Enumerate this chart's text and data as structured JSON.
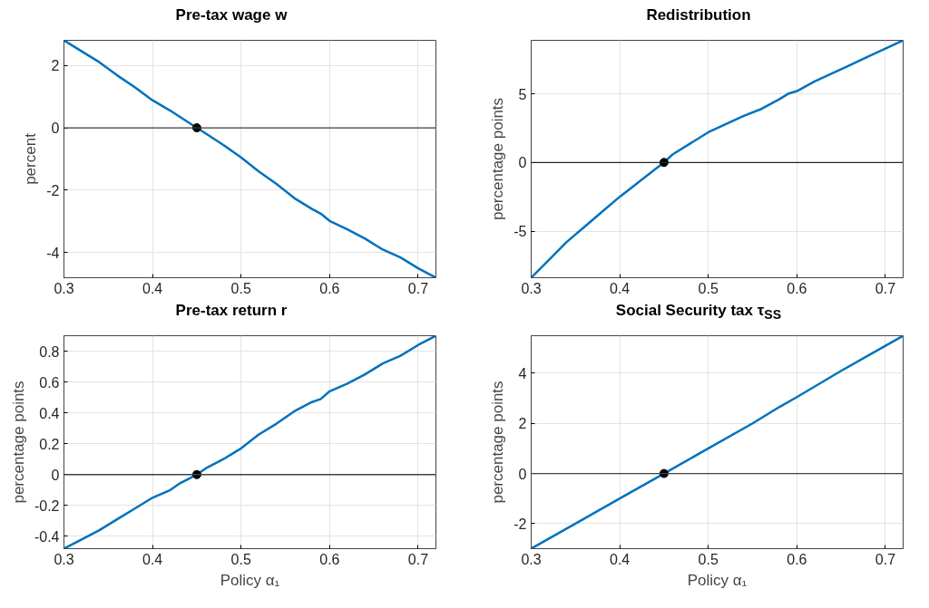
{
  "chart_data": [
    {
      "type": "line",
      "title": "Pre-tax wage w",
      "ylabel": "percent",
      "xlim": [
        0.3,
        0.72
      ],
      "xticks": [
        0.3,
        0.4,
        0.5,
        0.6,
        0.7
      ],
      "ylim": [
        -4.8,
        2.8
      ],
      "yticks": [
        -4,
        -2,
        0,
        2
      ],
      "grid": true,
      "ref_lines": [
        {
          "axis": "y",
          "value": 0,
          "color": "#404040"
        }
      ],
      "series": [
        {
          "color": "#0072bd",
          "x": [
            0.3,
            0.32,
            0.34,
            0.36,
            0.38,
            0.4,
            0.42,
            0.44,
            0.45,
            0.46,
            0.48,
            0.5,
            0.52,
            0.54,
            0.56,
            0.58,
            0.59,
            0.6,
            0.62,
            0.64,
            0.66,
            0.68,
            0.7,
            0.72
          ],
          "values": [
            2.8,
            2.45,
            2.1,
            1.68,
            1.3,
            0.88,
            0.55,
            0.18,
            0,
            -0.18,
            -0.55,
            -0.95,
            -1.4,
            -1.8,
            -2.25,
            -2.6,
            -2.75,
            -2.98,
            -3.25,
            -3.55,
            -3.9,
            -4.15,
            -4.5,
            -4.8
          ]
        },
        {
          "type": "scatter",
          "marker": "circle",
          "color": "#000000",
          "x": [
            0.45
          ],
          "values": [
            0
          ]
        }
      ]
    },
    {
      "type": "line",
      "title": "Redistribution",
      "ylabel": "percentage points",
      "xlim": [
        0.3,
        0.72
      ],
      "xticks": [
        0.3,
        0.4,
        0.5,
        0.6,
        0.7
      ],
      "ylim": [
        -8.4,
        8.9
      ],
      "yticks": [
        -5,
        0,
        5
      ],
      "grid": true,
      "ref_lines": [
        {
          "axis": "y",
          "value": 0,
          "color": "#262626"
        }
      ],
      "series": [
        {
          "color": "#0072bd",
          "x": [
            0.3,
            0.32,
            0.34,
            0.36,
            0.38,
            0.4,
            0.42,
            0.44,
            0.45,
            0.46,
            0.48,
            0.5,
            0.52,
            0.54,
            0.56,
            0.58,
            0.59,
            0.6,
            0.62,
            0.64,
            0.66,
            0.68,
            0.7,
            0.72
          ],
          "values": [
            -8.4,
            -7.1,
            -5.8,
            -4.7,
            -3.6,
            -2.5,
            -1.5,
            -0.5,
            0,
            0.6,
            1.4,
            2.2,
            2.8,
            3.4,
            3.9,
            4.6,
            5.0,
            5.2,
            5.9,
            6.5,
            7.1,
            7.7,
            8.3,
            8.9
          ]
        },
        {
          "type": "scatter",
          "marker": "circle",
          "color": "#000000",
          "x": [
            0.45
          ],
          "values": [
            0
          ]
        }
      ]
    },
    {
      "type": "line",
      "title": "Pre-tax return r",
      "xlabel": "Policy α₁",
      "ylabel": "percentage points",
      "xlim": [
        0.3,
        0.72
      ],
      "xticks": [
        0.3,
        0.4,
        0.5,
        0.6,
        0.7
      ],
      "ylim": [
        -0.48,
        0.9
      ],
      "yticks": [
        -0.4,
        -0.2,
        0,
        0.2,
        0.4,
        0.6,
        0.8
      ],
      "grid": true,
      "ref_lines": [
        {
          "axis": "y",
          "value": 0,
          "color": "#404040"
        }
      ],
      "series": [
        {
          "color": "#0072bd",
          "x": [
            0.3,
            0.32,
            0.34,
            0.36,
            0.38,
            0.4,
            0.42,
            0.43,
            0.44,
            0.45,
            0.46,
            0.48,
            0.5,
            0.52,
            0.54,
            0.56,
            0.58,
            0.59,
            0.6,
            0.62,
            0.64,
            0.66,
            0.68,
            0.7,
            0.72
          ],
          "values": [
            -0.48,
            -0.42,
            -0.36,
            -0.29,
            -0.22,
            -0.15,
            -0.1,
            -0.06,
            -0.03,
            0,
            0.04,
            0.1,
            0.17,
            0.26,
            0.33,
            0.41,
            0.47,
            0.49,
            0.54,
            0.59,
            0.65,
            0.72,
            0.77,
            0.84,
            0.9
          ]
        },
        {
          "type": "scatter",
          "marker": "circle",
          "color": "#000000",
          "x": [
            0.45
          ],
          "values": [
            0
          ]
        }
      ]
    },
    {
      "type": "line",
      "title": "Social Security tax τ$_{SS}$",
      "xlabel": "Policy α₁",
      "ylabel": "percentage points",
      "xlim": [
        0.3,
        0.72
      ],
      "xticks": [
        0.3,
        0.4,
        0.5,
        0.6,
        0.7
      ],
      "ylim": [
        -3,
        5.5
      ],
      "yticks": [
        -2,
        0,
        2,
        4
      ],
      "grid": true,
      "ref_lines": [
        {
          "axis": "y",
          "value": 0,
          "color": "#404040"
        }
      ],
      "series": [
        {
          "color": "#0072bd",
          "x": [
            0.3,
            0.35,
            0.4,
            0.45,
            0.5,
            0.55,
            0.58,
            0.6,
            0.65,
            0.7,
            0.72
          ],
          "values": [
            -3.0,
            -2.0,
            -1.0,
            0,
            1.0,
            2.0,
            2.65,
            3.05,
            4.1,
            5.1,
            5.5
          ]
        },
        {
          "type": "scatter",
          "marker": "circle",
          "color": "#000000",
          "x": [
            0.45
          ],
          "values": [
            0
          ]
        }
      ]
    }
  ]
}
